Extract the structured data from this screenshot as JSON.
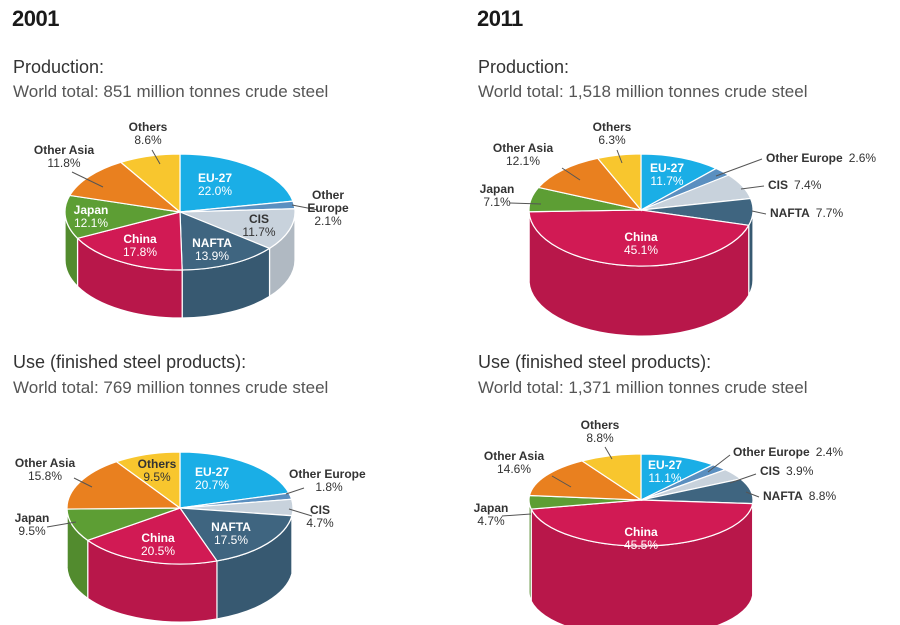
{
  "years": {
    "left": "2001",
    "right": "2011"
  },
  "panels": [
    {
      "heading": "Production:",
      "subheading": "World total: 851 million tonnes crude steel"
    },
    {
      "heading": "Production:",
      "subheading": "World total: 1,518 million tonnes crude steel"
    },
    {
      "heading": "Use (finished steel products):",
      "subheading": "World total: 769 million tonnes crude steel"
    },
    {
      "heading": "Use (finished steel products):",
      "subheading": "World total: 1,371 million tonnes crude steel"
    }
  ],
  "colors": {
    "EU-27": "#1aaee6",
    "Other Europe": "#5a8fc0",
    "CIS": "#c8d2dc",
    "NAFTA": "#3f6580",
    "China": "#d11a54",
    "Japan": "#5d9e34",
    "Other Asia": "#e9801f",
    "Others": "#f8c62e"
  },
  "chart_data": [
    {
      "type": "pie",
      "title": "2001 Production",
      "slices": [
        {
          "name": "EU-27",
          "value": 22.0,
          "label": "22.0%"
        },
        {
          "name": "Other Europe",
          "value": 2.1,
          "label": "2.1%"
        },
        {
          "name": "CIS",
          "value": 11.7,
          "label": "11.7%"
        },
        {
          "name": "NAFTA",
          "value": 13.9,
          "label": "13.9%"
        },
        {
          "name": "China",
          "value": 17.8,
          "label": "17.8%"
        },
        {
          "name": "Japan",
          "value": 12.1,
          "label": "12.1%"
        },
        {
          "name": "Other Asia",
          "value": 11.8,
          "label": "11.8%"
        },
        {
          "name": "Others",
          "value": 8.6,
          "label": "8.6%"
        }
      ]
    },
    {
      "type": "pie",
      "title": "2011 Production",
      "slices": [
        {
          "name": "EU-27",
          "value": 11.7,
          "label": "11.7%"
        },
        {
          "name": "Other Europe",
          "value": 2.6,
          "label": "2.6%"
        },
        {
          "name": "CIS",
          "value": 7.4,
          "label": "7.4%"
        },
        {
          "name": "NAFTA",
          "value": 7.7,
          "label": "7.7%"
        },
        {
          "name": "China",
          "value": 45.1,
          "label": "45.1%"
        },
        {
          "name": "Japan",
          "value": 7.1,
          "label": "7.1%"
        },
        {
          "name": "Other Asia",
          "value": 12.1,
          "label": "12.1%"
        },
        {
          "name": "Others",
          "value": 6.3,
          "label": "6.3%"
        }
      ]
    },
    {
      "type": "pie",
      "title": "2001 Use",
      "slices": [
        {
          "name": "EU-27",
          "value": 20.7,
          "label": "20.7%"
        },
        {
          "name": "Other Europe",
          "value": 1.8,
          "label": "1.8%"
        },
        {
          "name": "CIS",
          "value": 4.7,
          "label": "4.7%"
        },
        {
          "name": "NAFTA",
          "value": 17.5,
          "label": "17.5%"
        },
        {
          "name": "China",
          "value": 20.5,
          "label": "20.5%"
        },
        {
          "name": "Japan",
          "value": 9.5,
          "label": "9.5%"
        },
        {
          "name": "Other Asia",
          "value": 15.8,
          "label": "15.8%"
        },
        {
          "name": "Others",
          "value": 9.5,
          "label": "9.5%"
        }
      ]
    },
    {
      "type": "pie",
      "title": "2011 Use",
      "slices": [
        {
          "name": "EU-27",
          "value": 11.1,
          "label": "11.1%"
        },
        {
          "name": "Other Europe",
          "value": 2.4,
          "label": "2.4%"
        },
        {
          "name": "CIS",
          "value": 3.9,
          "label": "3.9%"
        },
        {
          "name": "NAFTA",
          "value": 8.8,
          "label": "8.8%"
        },
        {
          "name": "China",
          "value": 45.5,
          "label": "45.5%"
        },
        {
          "name": "Japan",
          "value": 4.7,
          "label": "4.7%"
        },
        {
          "name": "Other Asia",
          "value": 14.6,
          "label": "14.6%"
        },
        {
          "name": "Others",
          "value": 8.8,
          "label": "8.8%"
        }
      ]
    }
  ]
}
